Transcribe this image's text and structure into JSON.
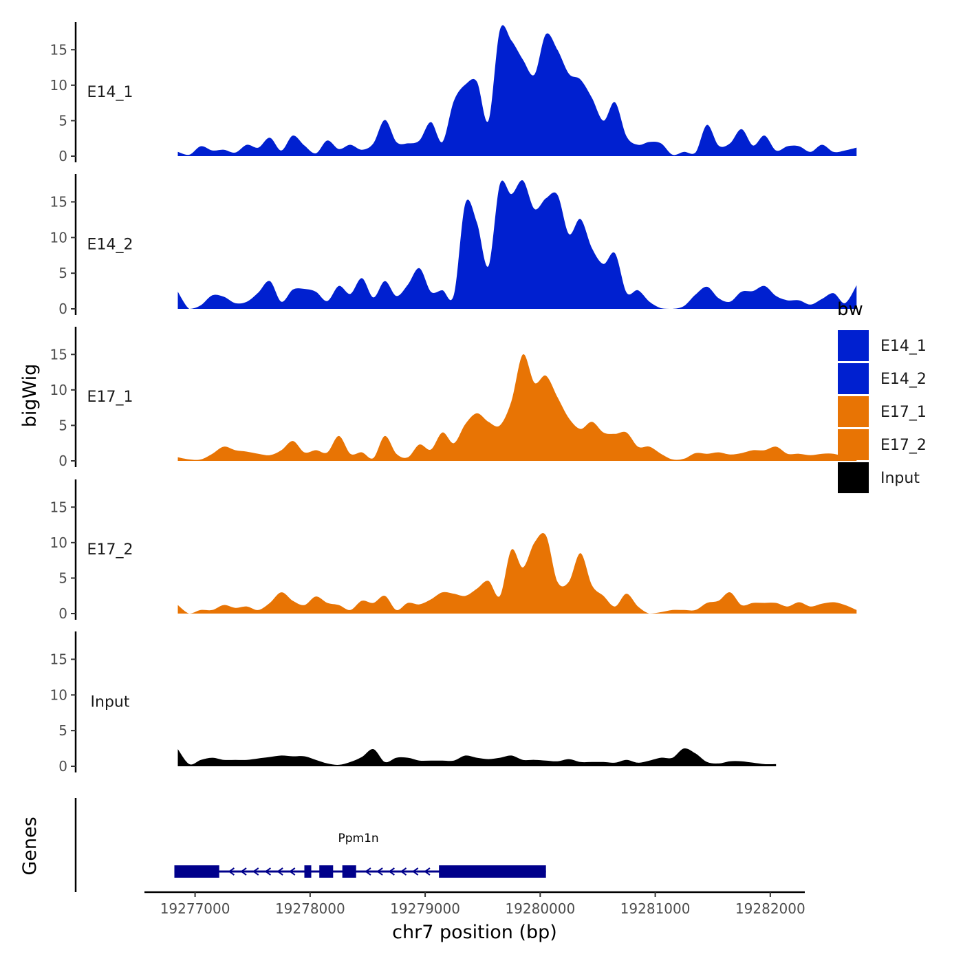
{
  "chart_data": {
    "type": "area",
    "x_axis": {
      "label": "chr7 position (bp)",
      "range": [
        19276560,
        19282300
      ],
      "ticks": [
        19277000,
        19278000,
        19279000,
        19280000,
        19281000,
        19282000
      ],
      "tick_labels": [
        "19277000",
        "19278000",
        "19279000",
        "19280000",
        "19281000",
        "19282000"
      ]
    },
    "y_axis": {
      "label": "bigWig",
      "range": [
        0,
        19
      ],
      "ticks": [
        0,
        5,
        10,
        15
      ],
      "tick_labels": [
        "0",
        "5",
        "10",
        "15"
      ]
    },
    "lower_panel_label": "Genes",
    "series": [
      {
        "name": "E14_1",
        "color": "#0020d0",
        "x_start": 19276850,
        "x_step": 100,
        "values": [
          0.6,
          0.2,
          1.4,
          0.8,
          0.9,
          0.5,
          1.6,
          1.2,
          2.6,
          0.8,
          2.9,
          1.5,
          0.4,
          2.2,
          1.0,
          1.6,
          0.9,
          1.8,
          5.1,
          2.0,
          1.8,
          2.2,
          4.8,
          2.0,
          7.8,
          10.1,
          10.5,
          5.0,
          17.8,
          16.3,
          13.6,
          11.5,
          17.2,
          15.0,
          11.6,
          10.8,
          8.2,
          5.0,
          7.6,
          2.8,
          1.6,
          2.0,
          1.8,
          0.2,
          0.6,
          0.5,
          4.4,
          1.5,
          1.8,
          3.8,
          1.5,
          2.9,
          0.8,
          1.4,
          1.4,
          0.6,
          1.6,
          0.6,
          0.8,
          1.2
        ]
      },
      {
        "name": "E14_2",
        "color": "#0020d0",
        "x_start": 19276850,
        "x_step": 100,
        "values": [
          2.4,
          0.0,
          0.5,
          1.9,
          1.7,
          0.8,
          1.0,
          2.3,
          3.9,
          1.0,
          2.7,
          2.8,
          2.4,
          1.1,
          3.2,
          2.1,
          4.3,
          1.6,
          3.9,
          1.8,
          3.4,
          5.7,
          2.4,
          2.6,
          2.0,
          14.8,
          12.1,
          6.0,
          17.5,
          16.1,
          18.0,
          14.0,
          15.5,
          16.0,
          10.5,
          12.6,
          8.5,
          6.3,
          7.8,
          2.3,
          2.6,
          1.0,
          0.1,
          0.0,
          0.4,
          2.0,
          3.1,
          1.5,
          1.0,
          2.4,
          2.5,
          3.2,
          1.8,
          1.2,
          1.2,
          0.6,
          1.4,
          2.2,
          0.8,
          3.3
        ]
      },
      {
        "name": "E17_1",
        "color": "#e87404",
        "x_start": 19276850,
        "x_step": 100,
        "values": [
          0.5,
          0.2,
          0.2,
          1.0,
          2.0,
          1.5,
          1.3,
          1.0,
          0.8,
          1.5,
          2.8,
          1.2,
          1.5,
          1.2,
          3.5,
          1.0,
          1.2,
          0.4,
          3.5,
          1.0,
          0.5,
          2.3,
          1.6,
          4.0,
          2.5,
          5.2,
          6.7,
          5.5,
          5.0,
          8.4,
          15.0,
          11.0,
          12.0,
          9.0,
          6.0,
          4.5,
          5.5,
          4.0,
          3.8,
          4.0,
          2.0,
          2.0,
          1.0,
          0.2,
          0.3,
          1.1,
          1.0,
          1.2,
          0.9,
          1.1,
          1.5,
          1.5,
          2.0,
          1.0,
          1.0,
          0.8,
          1.0,
          1.0,
          0.6,
          0.6
        ]
      },
      {
        "name": "E17_2",
        "color": "#e87404",
        "x_start": 19276850,
        "x_step": 100,
        "values": [
          1.2,
          0.0,
          0.5,
          0.5,
          1.2,
          0.8,
          1.0,
          0.5,
          1.5,
          3.0,
          1.8,
          1.2,
          2.4,
          1.5,
          1.2,
          0.5,
          1.8,
          1.5,
          2.5,
          0.5,
          1.5,
          1.3,
          2.0,
          3.0,
          2.8,
          2.5,
          3.5,
          4.6,
          2.5,
          9.0,
          6.5,
          10.0,
          11.0,
          4.5,
          4.5,
          8.5,
          4.0,
          2.5,
          1.0,
          2.8,
          1.0,
          0.0,
          0.2,
          0.5,
          0.5,
          0.5,
          1.5,
          1.8,
          3.0,
          1.2,
          1.5,
          1.5,
          1.5,
          1.0,
          1.6,
          1.0,
          1.4,
          1.6,
          1.2,
          0.5
        ]
      },
      {
        "name": "Input",
        "color": "#000000",
        "x_start": 19276850,
        "x_step": 100,
        "values": [
          2.4,
          0.3,
          0.9,
          1.2,
          0.9,
          0.9,
          0.9,
          1.1,
          1.3,
          1.5,
          1.4,
          1.4,
          0.9,
          0.4,
          0.2,
          0.6,
          1.3,
          2.4,
          0.6,
          1.2,
          1.2,
          0.8,
          0.8,
          0.8,
          0.8,
          1.5,
          1.2,
          1.0,
          1.2,
          1.5,
          0.9,
          0.9,
          0.8,
          0.7,
          1.0,
          0.6,
          0.6,
          0.6,
          0.5,
          0.9,
          0.5,
          0.8,
          1.2,
          1.2,
          2.5,
          1.8,
          0.6,
          0.4,
          0.7,
          0.7,
          0.5,
          0.3,
          0.3
        ]
      }
    ],
    "legend": {
      "title": "bw",
      "position": "right",
      "entries": [
        {
          "label": "E14_1",
          "color": "#0020d0"
        },
        {
          "label": "E14_2",
          "color": "#0020d0"
        },
        {
          "label": "E17_1",
          "color": "#e87404"
        },
        {
          "label": "E17_2",
          "color": "#e87404"
        },
        {
          "label": "Input",
          "color": "#000000"
        }
      ]
    },
    "gene_track": {
      "gene": "Ppm1n",
      "color": "#00008b",
      "strand": "-",
      "start": 19276820,
      "end": 19280050,
      "exons": [
        [
          19276820,
          19277210
        ],
        [
          19277950,
          19278010
        ],
        [
          19278080,
          19278200
        ],
        [
          19278280,
          19278400
        ],
        [
          19279120,
          19280050
        ]
      ]
    }
  }
}
